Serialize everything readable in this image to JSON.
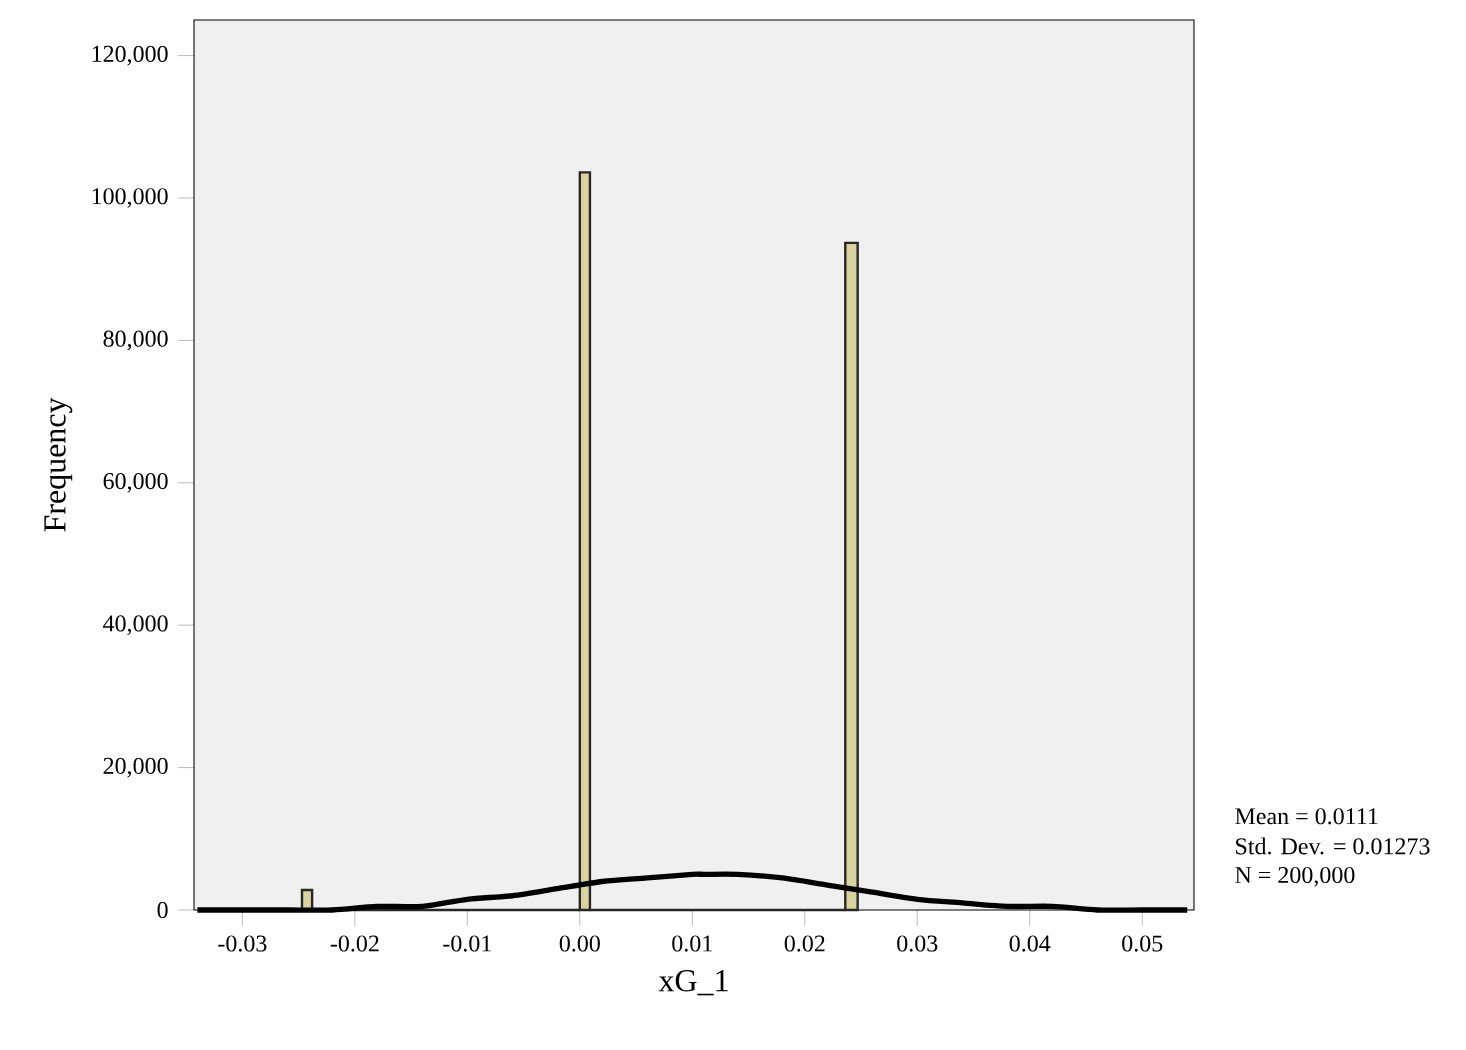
{
  "chart_data": {
    "type": "histogram",
    "xlabel": "xG_1",
    "ylabel": "Frequency",
    "bins": [
      -0.0247,
      -0.0238,
      0.0,
      0.0009,
      0.0236,
      0.0247
    ],
    "values": [
      2800,
      0,
      103600,
      0,
      93700
    ],
    "color": "#d9d3a0",
    "series": [
      {
        "type": "line",
        "color": "#000000",
        "x": [
          -0.034,
          -0.03,
          -0.026,
          -0.022,
          -0.018,
          -0.014,
          -0.01,
          -0.006,
          -0.002,
          0.002,
          0.006,
          0.01,
          0.0111,
          0.014,
          0.018,
          0.022,
          0.026,
          0.03,
          0.034,
          0.038,
          0.042,
          0.046,
          0.05,
          0.054
        ],
        "values": [
          0,
          0,
          0,
          0,
          500,
          500,
          1500,
          2000,
          3000,
          4000,
          4500,
          5000,
          5000,
          5000,
          4500,
          3500,
          2500,
          1500,
          1000,
          500,
          500,
          0,
          0,
          0
        ]
      }
    ],
    "xlim": [
      -0.0343,
      0.0546
    ],
    "ylim": [
      0,
      125000
    ],
    "xticks": [
      {
        "value": -0.03,
        "label": "-0.03"
      },
      {
        "value": -0.02,
        "label": "-0.02"
      },
      {
        "value": -0.01,
        "label": "-0.01"
      },
      {
        "value": 0.0,
        "label": "0.00"
      },
      {
        "value": 0.01,
        "label": "0.01"
      },
      {
        "value": 0.02,
        "label": "0.02"
      },
      {
        "value": 0.03,
        "label": "0.03"
      },
      {
        "value": 0.04,
        "label": "0.04"
      },
      {
        "value": 0.05,
        "label": "0.05"
      }
    ],
    "yticks": [
      0,
      {
        "value": 20000,
        "label": "20,000"
      },
      {
        "value": 40000,
        "label": "40,000"
      },
      {
        "value": 60000,
        "label": "60,000"
      },
      {
        "value": 80000,
        "label": "80,000"
      },
      {
        "value": 100000,
        "label": "100,000"
      },
      {
        "value": 120000,
        "label": "120,000"
      }
    ],
    "annotations": [
      "Mean = 0.0111",
      "Std. Dev. = 0.01273",
      "N = 200,000"
    ],
    "grid": false
  }
}
